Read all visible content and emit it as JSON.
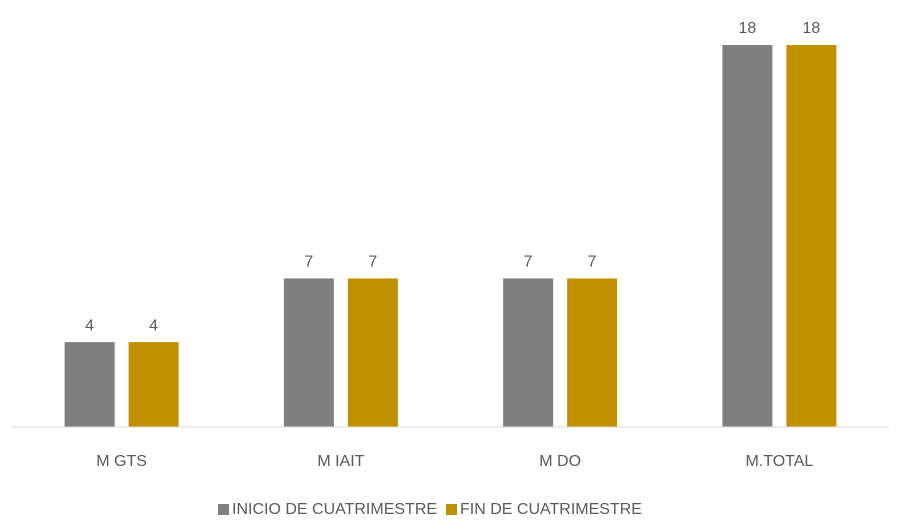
{
  "chart_data": {
    "type": "bar",
    "categories": [
      "M GTS",
      "M IAIT",
      "M DO",
      "M.TOTAL"
    ],
    "series": [
      {
        "name": "INICIO DE CUATRIMESTRE",
        "color": "#7f7f7f",
        "values": [
          4,
          7,
          7,
          18
        ]
      },
      {
        "name": "FIN DE CUATRIMESTRE",
        "color": "#bf9000",
        "values": [
          4,
          7,
          7,
          18
        ]
      }
    ]
  }
}
